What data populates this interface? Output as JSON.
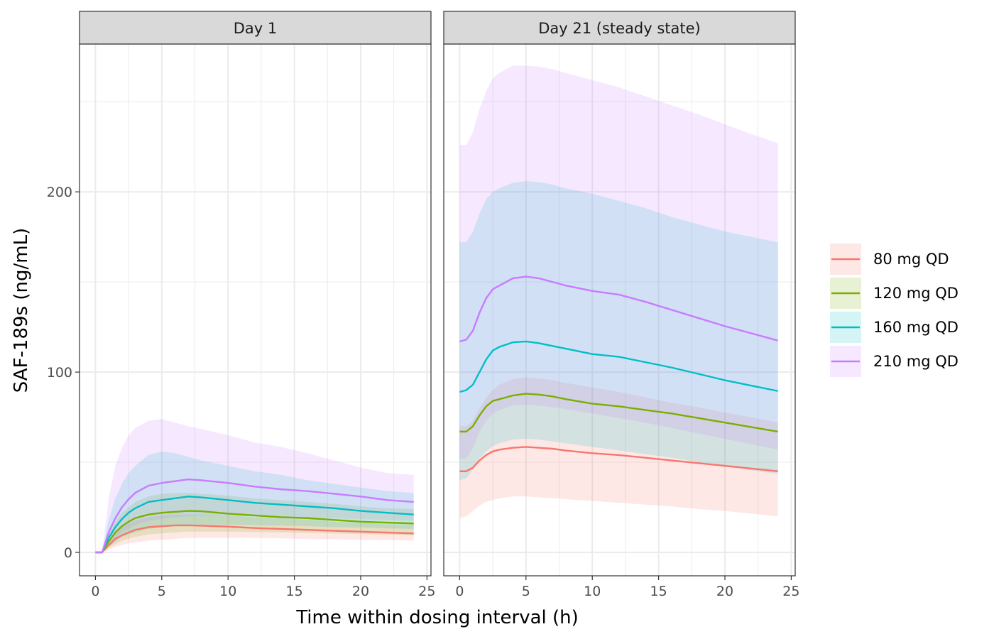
{
  "colors": {
    "80 mg QD": "#F8766D",
    "120 mg QD": "#7CAE00",
    "160 mg QD": "#00BFC4",
    "210 mg QD": "#C77CFF",
    "panel_border": "#333333",
    "strip_fill": "#D9D9D9",
    "grid": "#EBEBEB"
  },
  "chart_data": {
    "type": "area",
    "xlabel": "Time within dosing interval (h)",
    "ylabel": "SAF-189s (ng/mL)",
    "xlim": [
      -1.2,
      25.3
    ],
    "ylim": [
      -13,
      282
    ],
    "x_ticks": [
      0,
      5,
      10,
      15,
      20,
      25
    ],
    "y_ticks": [
      0,
      100,
      200
    ],
    "grid": true,
    "legend_position": "right",
    "legend_entries": [
      "80 mg QD",
      "120 mg QD",
      "160 mg QD",
      "210 mg QD"
    ],
    "x": [
      0,
      0.5,
      1,
      1.5,
      2,
      2.5,
      3,
      4,
      5,
      6,
      7,
      8,
      10,
      12,
      14,
      16,
      18,
      20,
      22,
      24
    ],
    "panels": [
      {
        "strip": "Day 1",
        "series": [
          {
            "name": "80 mg QD",
            "median": [
              0,
              0,
              4,
              7.5,
              9.5,
              11,
              12.5,
              14,
              14.5,
              15,
              15,
              14.8,
              14.3,
              13.5,
              13,
              12.5,
              12,
              11.5,
              11,
              10.5
            ],
            "lower": [
              0,
              0,
              1.5,
              3,
              4,
              5,
              5.5,
              6.5,
              7,
              7.5,
              8,
              8,
              8,
              8,
              7.8,
              7.5,
              7.3,
              7,
              6.8,
              6.5
            ],
            "upper": [
              0,
              0,
              6.5,
              11,
              14,
              16,
              17.5,
              19.5,
              20.5,
              21,
              21,
              21,
              20.5,
              19.5,
              18.8,
              18,
              17,
              16.3,
              15.6,
              15
            ]
          },
          {
            "name": "120 mg QD",
            "median": [
              0,
              0,
              6,
              11,
              14.5,
              17,
              19,
              21,
              22,
              22.5,
              23,
              22.8,
              21.5,
              20.5,
              19.5,
              19,
              18,
              17,
              16.5,
              16
            ],
            "lower": [
              0,
              0,
              2.5,
              4.5,
              6.5,
              7.5,
              8.5,
              10,
              10.5,
              11,
              11.5,
              11.5,
              11.5,
              11.3,
              11,
              10.8,
              10.5,
              10.2,
              9.8,
              9.5
            ],
            "upper": [
              0,
              0,
              10,
              17,
              22,
              25,
              28,
              31,
              32.5,
              33,
              33,
              32.5,
              31.5,
              30,
              29,
              28,
              27,
              25.5,
              24.5,
              24
            ]
          },
          {
            "name": "160 mg QD",
            "median": [
              0,
              0,
              8,
              14,
              18.5,
              22,
              24.5,
              28,
              29,
              30,
              31,
              30.5,
              29,
              27.5,
              26.5,
              25.5,
              24.5,
              23,
              22,
              21
            ],
            "lower": [
              0,
              0,
              3,
              6,
              8.5,
              10,
              11,
              13,
              14,
              14.5,
              15,
              15.3,
              15.3,
              15,
              14.8,
              14.5,
              14,
              13.8,
              13.3,
              13
            ],
            "upper": [
              0,
              0,
              18,
              30,
              38,
              44,
              48,
              54,
              56,
              55,
              53,
              51,
              48,
              45,
              43,
              40,
              38,
              36,
              34,
              33
            ]
          },
          {
            "name": "210 mg QD",
            "median": [
              0,
              0,
              11,
              19,
              25,
              29.5,
              33,
              37,
              38.5,
              39.5,
              40.5,
              40,
              38.5,
              36.5,
              35,
              34,
              32.5,
              31,
              29,
              28
            ],
            "lower": [
              0,
              0,
              4,
              8,
              11,
              13,
              15,
              17.5,
              18.5,
              19.5,
              20,
              20.5,
              20.5,
              20,
              19.8,
              19.5,
              19,
              18.5,
              18,
              17.5
            ],
            "upper": [
              0,
              0,
              30,
              48,
              58,
              65,
              69,
              73,
              74,
              72,
              70,
              68.5,
              65,
              61,
              58.5,
              55,
              51,
              47,
              44,
              43
            ]
          }
        ]
      },
      {
        "strip": "Day 21 (steady state)",
        "series": [
          {
            "name": "80 mg QD",
            "median": [
              45,
              45,
              47,
              51,
              54,
              56,
              57,
              58,
              58.5,
              58,
              57.5,
              56.5,
              55,
              54,
              52.5,
              51,
              49.5,
              48,
              46.5,
              45
            ],
            "lower": [
              19,
              20,
              23,
              26,
              28,
              29,
              30,
              31,
              31,
              30.5,
              30,
              29.5,
              28.5,
              27.5,
              26.5,
              25.5,
              24,
              23,
              21.5,
              20
            ],
            "upper": [
              70,
              70,
              73,
              80,
              86,
              90,
              93,
              96,
              97,
              96.5,
              95.5,
              94,
              91.5,
              89,
              86,
              83,
              80.5,
              77.5,
              75,
              72
            ]
          },
          {
            "name": "120 mg QD",
            "median": [
              67,
              67,
              70,
              76,
              81,
              84,
              85,
              87,
              88,
              87.5,
              86.5,
              85,
              82.5,
              81,
              79,
              77,
              74.5,
              72,
              69.5,
              67
            ]
          },
          {
            "name": "160 mg QD",
            "median": [
              89,
              90,
              93,
              100,
              107,
              112,
              114,
              116.5,
              117,
              116,
              114.5,
              113,
              110,
              108.5,
              105.5,
              102.5,
              99,
              95.5,
              92.5,
              89.5
            ],
            "lower": [
              40,
              41,
              46,
              52,
              56,
              59,
              60.5,
              62.5,
              63,
              62.5,
              61.5,
              60.5,
              58.5,
              56.5,
              54.5,
              52.5,
              50,
              48,
              45.5,
              43.5
            ],
            "upper": [
              172,
              172,
              178,
              188,
              196,
              200,
              202,
              205,
              206,
              205.5,
              204,
              202,
              199,
              195,
              191,
              186,
              182,
              178,
              175,
              172
            ]
          },
          {
            "name": "210 mg QD",
            "median": [
              117,
              118,
              123,
              133,
              141,
              146,
              148,
              152,
              153,
              152,
              150,
              148,
              145,
              143,
              139,
              134.5,
              130,
              125.5,
              121.5,
              117.5
            ],
            "lower": [
              52,
              52,
              58,
              67,
              73,
              77,
              79,
              81.5,
              82,
              81.5,
              80.5,
              79.5,
              77,
              74.5,
              72,
              69,
              66,
              63,
              60,
              57
            ],
            "upper": [
              226,
              226,
              233,
              246,
              256,
              263,
              266,
              270,
              270,
              269.5,
              268,
              266,
              262,
              258,
              253,
              248,
              243,
              237.5,
              232,
              227
            ]
          }
        ]
      }
    ]
  }
}
